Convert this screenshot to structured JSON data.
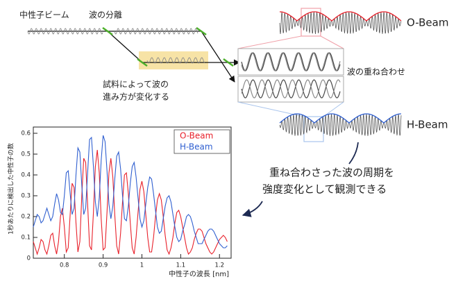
{
  "labels": {
    "neutron_beam": "中性子ビーム",
    "splitting": "波の分離",
    "sample_line1": "試料によって波の",
    "sample_line2": "進み方が変化する",
    "o_beam": "O-Beam",
    "h_beam": "H-Beam",
    "superposition": "波の重ね合わせ",
    "callout_line1": "重ね合わさった波の周期を",
    "callout_line2": "強度変化として観測できる"
  },
  "chart_data": {
    "type": "line",
    "x_label": "中性子の波長 [nm]",
    "y_label": "1秒あたりに検出した中性子の数",
    "x": [
      0.72,
      0.725,
      0.73,
      0.735,
      0.74,
      0.745,
      0.75,
      0.755,
      0.76,
      0.765,
      0.77,
      0.775,
      0.78,
      0.785,
      0.79,
      0.795,
      0.8,
      0.805,
      0.81,
      0.815,
      0.82,
      0.825,
      0.83,
      0.835,
      0.84,
      0.845,
      0.85,
      0.855,
      0.86,
      0.865,
      0.87,
      0.875,
      0.88,
      0.885,
      0.89,
      0.895,
      0.9,
      0.905,
      0.91,
      0.915,
      0.92,
      0.925,
      0.93,
      0.935,
      0.94,
      0.945,
      0.95,
      0.955,
      0.96,
      0.965,
      0.97,
      0.975,
      0.98,
      0.985,
      0.99,
      0.995,
      1.0,
      1.005,
      1.01,
      1.015,
      1.02,
      1.025,
      1.03,
      1.035,
      1.04,
      1.045,
      1.05,
      1.055,
      1.06,
      1.065,
      1.07,
      1.075,
      1.08,
      1.085,
      1.09,
      1.095,
      1.1,
      1.105,
      1.11,
      1.115,
      1.12,
      1.125,
      1.13,
      1.135,
      1.14,
      1.145,
      1.15,
      1.155,
      1.16,
      1.165,
      1.17,
      1.175,
      1.18,
      1.185,
      1.19,
      1.195,
      1.2,
      1.205,
      1.21,
      1.215,
      1.22
    ],
    "series": [
      {
        "name": "O-Beam",
        "color": "#e8202a",
        "values": [
          0.08,
          0.05,
          0.02,
          0.05,
          0.09,
          0.08,
          0.04,
          0.02,
          0.06,
          0.11,
          0.12,
          0.06,
          0.02,
          0.08,
          0.2,
          0.24,
          0.15,
          0.03,
          0.05,
          0.21,
          0.36,
          0.34,
          0.17,
          0.03,
          0.08,
          0.3,
          0.48,
          0.46,
          0.26,
          0.06,
          0.04,
          0.22,
          0.44,
          0.52,
          0.41,
          0.19,
          0.04,
          0.05,
          0.22,
          0.41,
          0.48,
          0.39,
          0.21,
          0.06,
          0.02,
          0.12,
          0.27,
          0.4,
          0.41,
          0.31,
          0.17,
          0.05,
          0.02,
          0.1,
          0.22,
          0.33,
          0.37,
          0.32,
          0.21,
          0.1,
          0.03,
          0.03,
          0.1,
          0.2,
          0.28,
          0.31,
          0.28,
          0.2,
          0.11,
          0.04,
          0.02,
          0.05,
          0.1,
          0.17,
          0.22,
          0.23,
          0.2,
          0.15,
          0.1,
          0.05,
          0.02,
          0.03,
          0.05,
          0.09,
          0.12,
          0.14,
          0.14,
          0.13,
          0.1,
          0.07,
          0.05,
          0.03,
          0.02,
          0.03,
          0.05,
          0.07,
          0.09,
          0.1,
          0.11,
          0.1,
          0.08
        ]
      },
      {
        "name": "H-Beam",
        "color": "#2f5fd0",
        "values": [
          0.15,
          0.18,
          0.21,
          0.2,
          0.17,
          0.18,
          0.21,
          0.24,
          0.21,
          0.18,
          0.2,
          0.26,
          0.31,
          0.28,
          0.22,
          0.21,
          0.3,
          0.41,
          0.42,
          0.31,
          0.21,
          0.24,
          0.4,
          0.53,
          0.51,
          0.35,
          0.21,
          0.24,
          0.41,
          0.57,
          0.58,
          0.44,
          0.27,
          0.2,
          0.29,
          0.47,
          0.59,
          0.56,
          0.42,
          0.26,
          0.19,
          0.25,
          0.38,
          0.49,
          0.51,
          0.43,
          0.3,
          0.19,
          0.18,
          0.25,
          0.36,
          0.44,
          0.46,
          0.39,
          0.29,
          0.19,
          0.15,
          0.18,
          0.26,
          0.34,
          0.39,
          0.38,
          0.31,
          0.23,
          0.15,
          0.12,
          0.13,
          0.19,
          0.25,
          0.29,
          0.3,
          0.27,
          0.21,
          0.15,
          0.1,
          0.08,
          0.09,
          0.13,
          0.16,
          0.2,
          0.21,
          0.2,
          0.17,
          0.13,
          0.1,
          0.07,
          0.07,
          0.07,
          0.09,
          0.11,
          0.13,
          0.14,
          0.14,
          0.13,
          0.11,
          0.09,
          0.07,
          0.06,
          0.05,
          0.05,
          0.06
        ]
      }
    ],
    "xlim": [
      0.72,
      1.23
    ],
    "ylim": [
      0,
      0.63
    ],
    "xticks": [
      0.8,
      0.9,
      1,
      1.1,
      1.2
    ],
    "yticks": [
      0,
      0.1,
      0.2,
      0.3,
      0.4,
      0.5,
      0.6
    ],
    "legend": "upper right"
  }
}
